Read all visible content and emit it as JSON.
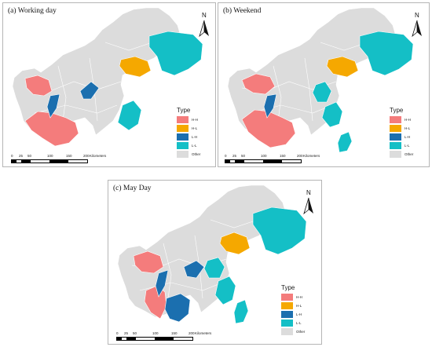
{
  "panels": [
    {
      "title": "(a) Working day"
    },
    {
      "title": "(b) Weekend"
    },
    {
      "title": "(c) May Day"
    }
  ],
  "north_arrow": {
    "label": "N",
    "icon": "north-arrow-icon"
  },
  "legend": {
    "title": "Type",
    "items": [
      {
        "label": "H-H",
        "color": "#F47C7C"
      },
      {
        "label": "H-L",
        "color": "#F5A800"
      },
      {
        "label": "L-H",
        "color": "#1B6FAF"
      },
      {
        "label": "L-L",
        "color": "#14BFC6"
      },
      {
        "label": "Other",
        "color": "#DCDCDC"
      }
    ]
  },
  "scalebar": {
    "ticks": [
      "0",
      "25",
      "50",
      "100",
      "150",
      "200"
    ],
    "unit": "Kilometers"
  },
  "colors": {
    "other_fill": "#DCDCDC",
    "boundary": "#ffffff",
    "panel_border": "#b5b5b5"
  }
}
